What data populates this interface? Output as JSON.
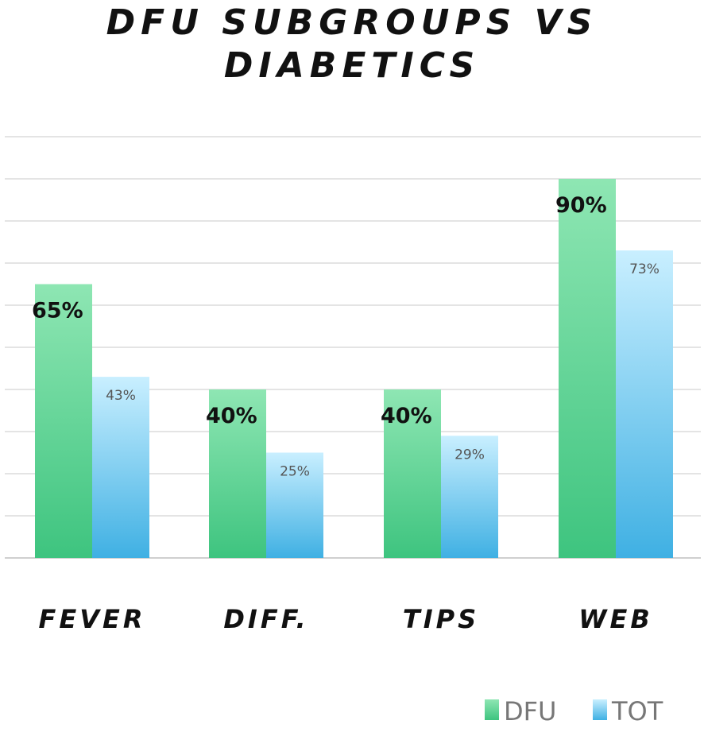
{
  "chart_data": {
    "type": "bar",
    "title_lines": [
      "DFU SUBGROUPS VS",
      "DIABETICS"
    ],
    "categories": [
      "FEVER",
      "DIFF.",
      "TIPS",
      "WEB"
    ],
    "series": [
      {
        "name": "DFU",
        "values": [
          65,
          40,
          40,
          90
        ],
        "labels": [
          "65%",
          "40%",
          "40%",
          "90%"
        ],
        "color_top": "#8ee6b3",
        "color_bottom": "#3ec47f"
      },
      {
        "name": "TOT",
        "values": [
          43,
          25,
          29,
          73
        ],
        "labels": [
          "43%",
          "25%",
          "29%",
          "73%"
        ],
        "color_top": "#c9efff",
        "color_bottom": "#3fb0e3"
      }
    ],
    "ylim": [
      0,
      100
    ],
    "grid": true,
    "legend_position": "bottom-right"
  }
}
